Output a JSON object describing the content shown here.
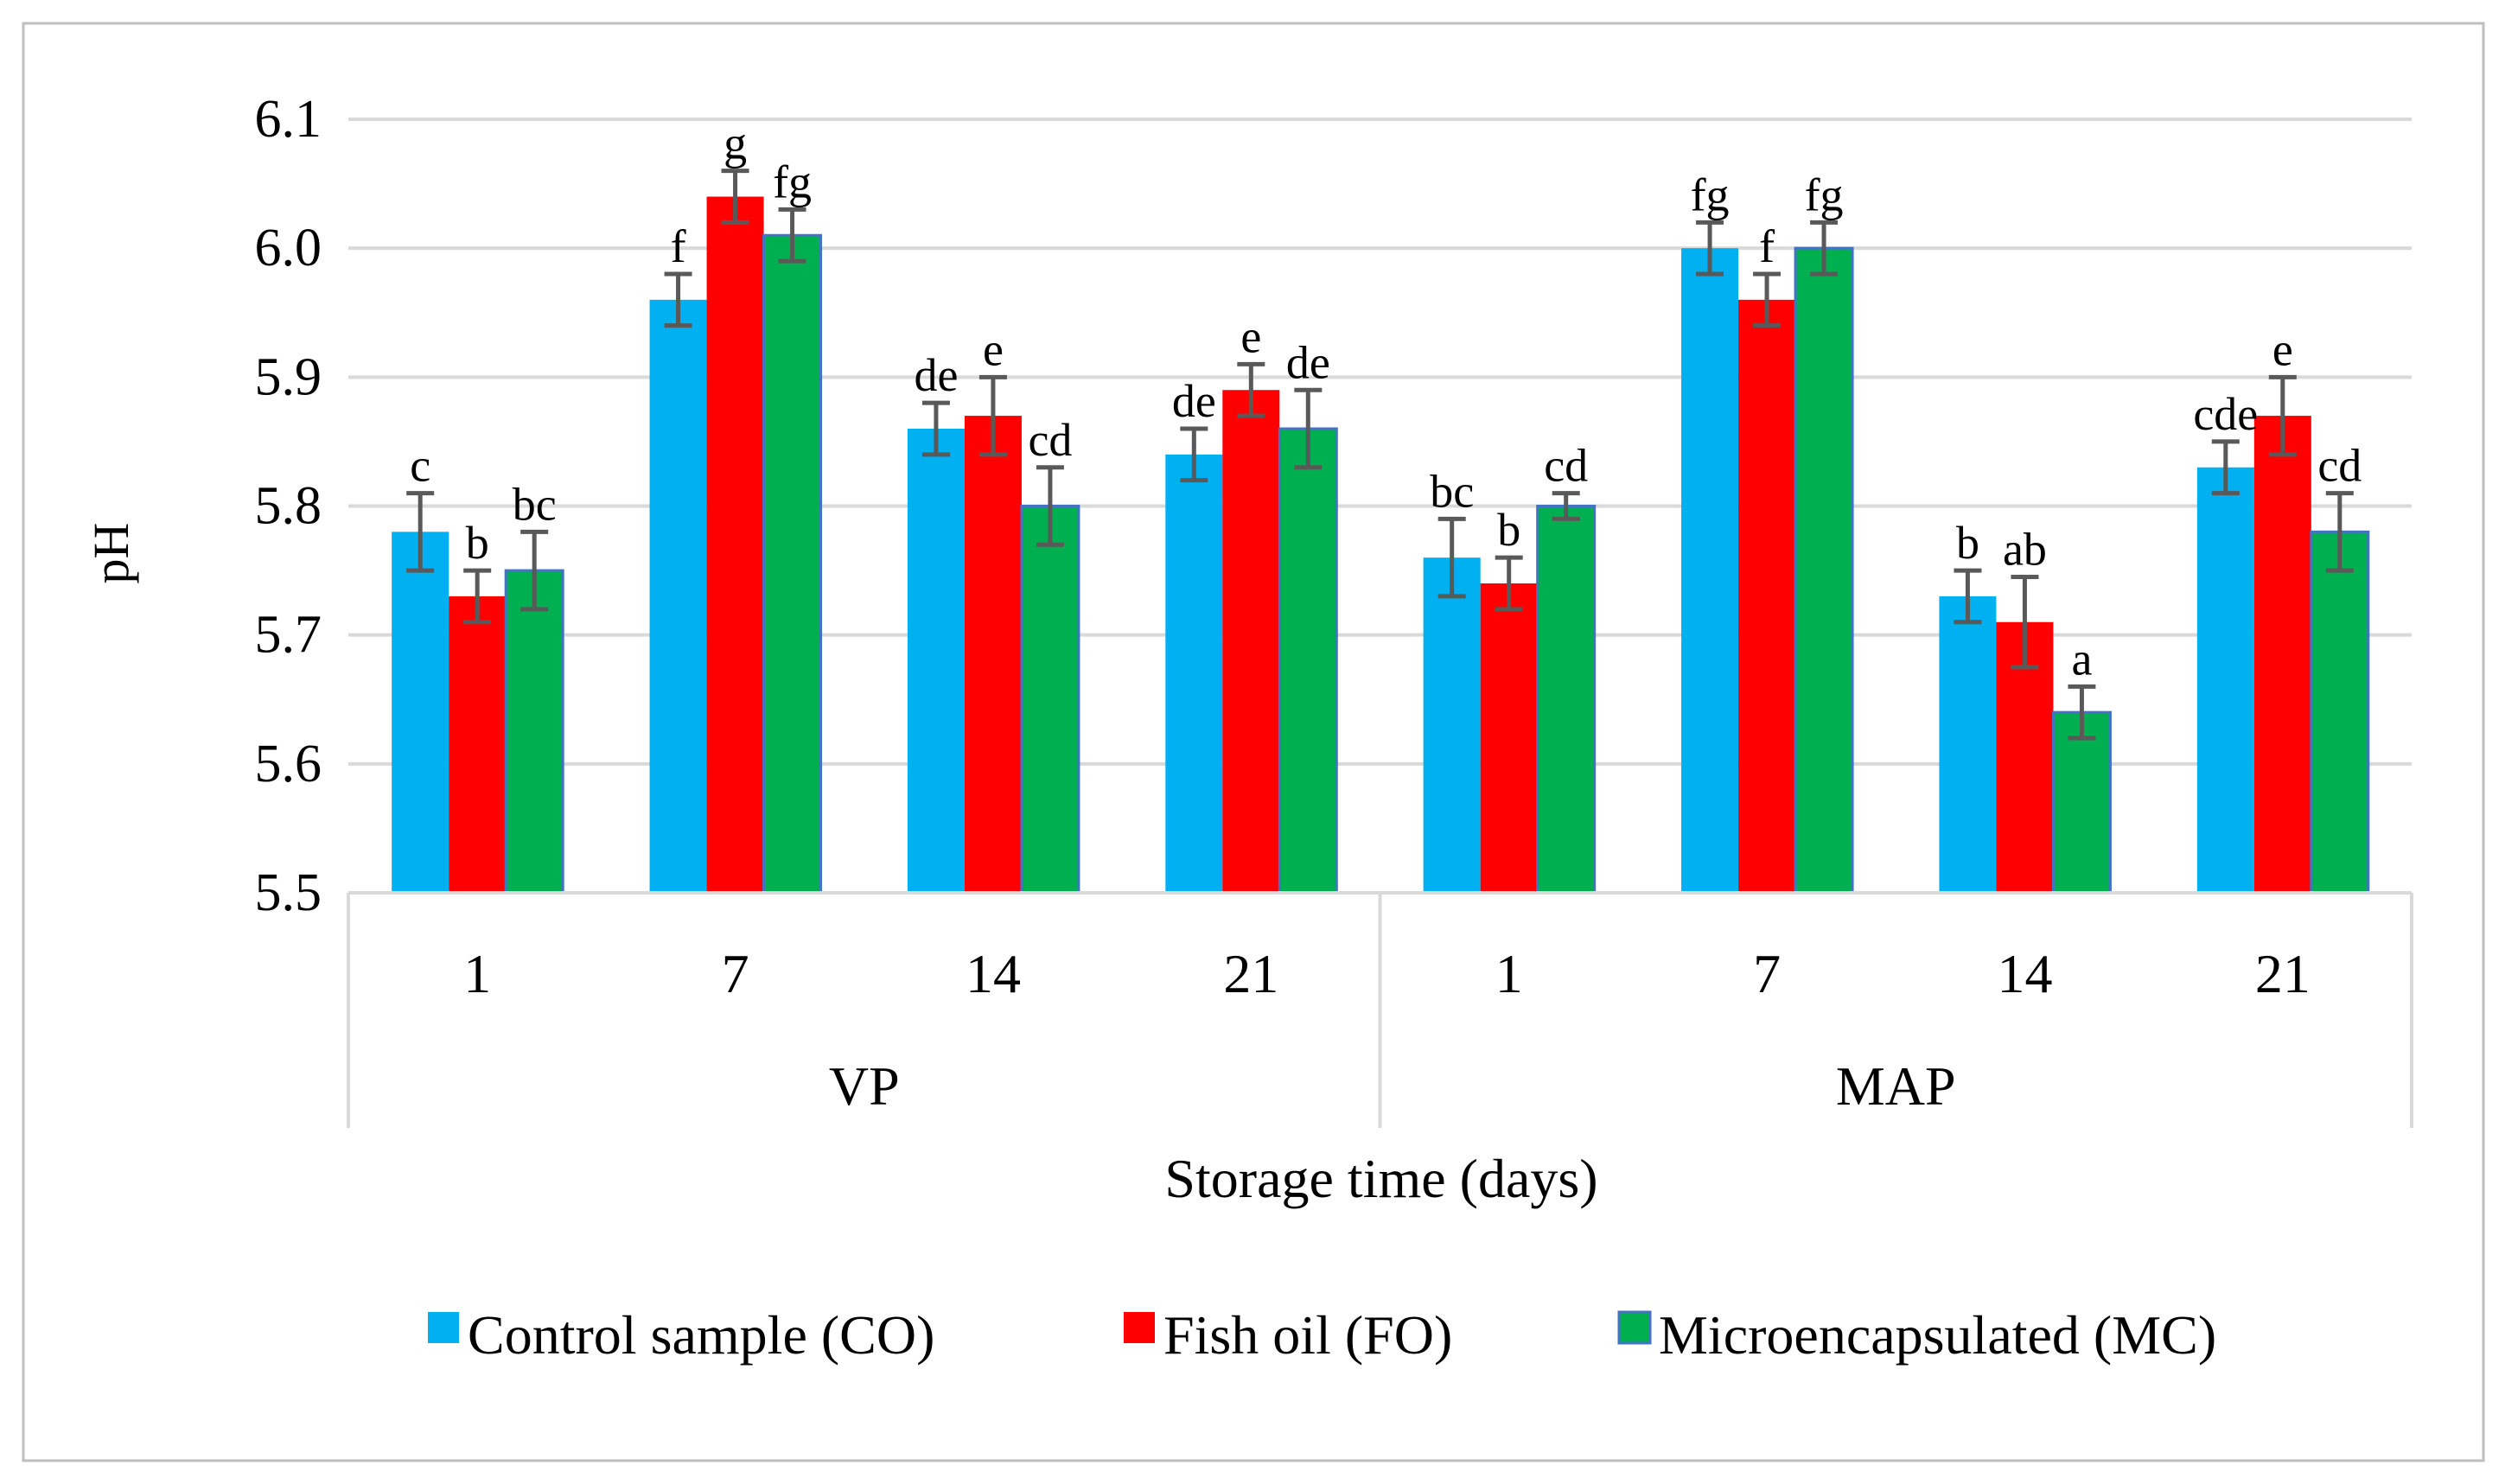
{
  "chart_data": {
    "type": "bar",
    "title": "",
    "xlabel": "Storage time (days)",
    "ylabel": "pH",
    "ylim": [
      5.5,
      6.1
    ],
    "yticks": [
      "5.5",
      "5.6",
      "5.7",
      "5.8",
      "5.9",
      "6.0",
      "6.1"
    ],
    "grid": true,
    "legend_position": "bottom",
    "groups": [
      {
        "label": "VP",
        "categories": [
          "1",
          "7",
          "14",
          "21"
        ]
      },
      {
        "label": "MAP",
        "categories": [
          "1",
          "7",
          "14",
          "21"
        ]
      }
    ],
    "series": [
      {
        "name": "Control sample (CO)",
        "color": "#00B0F0",
        "values": [
          5.78,
          5.96,
          5.86,
          5.84,
          5.76,
          6.0,
          5.73,
          5.83
        ],
        "errors": [
          0.03,
          0.02,
          0.02,
          0.02,
          0.03,
          0.02,
          0.02,
          0.02
        ],
        "letters": [
          "c",
          "f",
          "de",
          "de",
          "bc",
          "fg",
          "b",
          "cde"
        ]
      },
      {
        "name": "Fish oil (FO)",
        "color": "#FF0000",
        "values": [
          5.73,
          6.04,
          5.87,
          5.89,
          5.74,
          5.96,
          5.71,
          5.87
        ],
        "errors": [
          0.02,
          0.02,
          0.03,
          0.02,
          0.02,
          0.02,
          0.035,
          0.03
        ],
        "letters": [
          "b",
          "g",
          "e",
          "e",
          "b",
          "f",
          "ab",
          "e"
        ]
      },
      {
        "name": "Microencapsulated (MC)",
        "color": "#00B050",
        "values": [
          5.75,
          6.01,
          5.8,
          5.86,
          5.8,
          6.0,
          5.64,
          5.78
        ],
        "errors": [
          0.03,
          0.02,
          0.03,
          0.03,
          0.01,
          0.02,
          0.02,
          0.03
        ],
        "letters": [
          "bc",
          "fg",
          "cd",
          "de",
          "cd",
          "fg",
          "a",
          "cd"
        ]
      }
    ],
    "colors": {
      "error_bar": "#595959",
      "gridline": "#D9D9D9",
      "axis": "#D9D9D9",
      "frame": "#BFBFBF",
      "mc_outline": "#4472C4"
    }
  }
}
